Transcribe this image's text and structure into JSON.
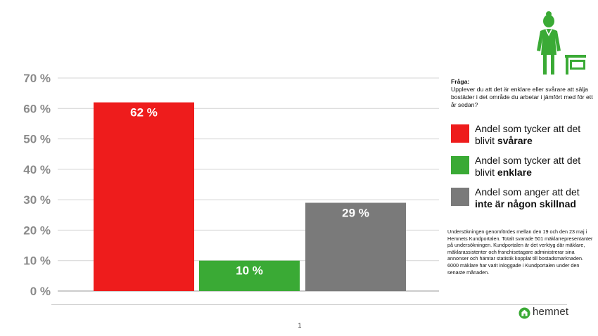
{
  "chart_data": {
    "type": "bar",
    "categories": [
      "svårare",
      "enklare",
      "ingen skillnad"
    ],
    "values": [
      62,
      10,
      29
    ],
    "data_labels": [
      "62 %",
      "10 %",
      "29 %"
    ],
    "colors": [
      "#ee1c1c",
      "#3aaa35",
      "#7a7a7a"
    ],
    "ylim": [
      0,
      70
    ],
    "yticks": [
      0,
      10,
      20,
      30,
      40,
      50,
      60,
      70
    ],
    "ytick_labels": [
      "0 %",
      "10 %",
      "20 %",
      "30 %",
      "40 %",
      "50 %",
      "60 %",
      "70 %"
    ],
    "grid": true,
    "legend_position": "right"
  },
  "question": {
    "title": "Fråga:",
    "text": "Upplever du att det är enklare eller svårare att sälja bostäder i det område du arbetar i jämfört med för ett år sedan?"
  },
  "legend": [
    {
      "text": "Andel som tycker att det blivit ",
      "bold": "svårare",
      "color": "#ee1c1c"
    },
    {
      "text": "Andel som tycker att det blivit ",
      "bold": "enklare",
      "color": "#3aaa35"
    },
    {
      "text": "Andel som anger att det ",
      "bold": "inte är någon skillnad",
      "color": "#7a7a7a"
    }
  ],
  "footnote": "Undersökningen genomfördes mellan den 19 och den 23 maj i Hemnets Kundportalen. Totalt svarade 501 mäklarrepresentanter på undersökningen. Kundportalen är det verktyg där mäklare, mäklarassistenter och franchisetagare administrerar sina annonser och hämtar statistik kopplat till bostadsmarknaden. 6000 mäklare har varit inloggade i Kundportalen under den senaste månaden.",
  "brand": {
    "name": "hemnet",
    "color": "#3aaa35"
  },
  "icons": {
    "agent": "realtor-woman-with-sign-icon",
    "logo": "hemnet-logo-icon"
  },
  "page_number": "1"
}
